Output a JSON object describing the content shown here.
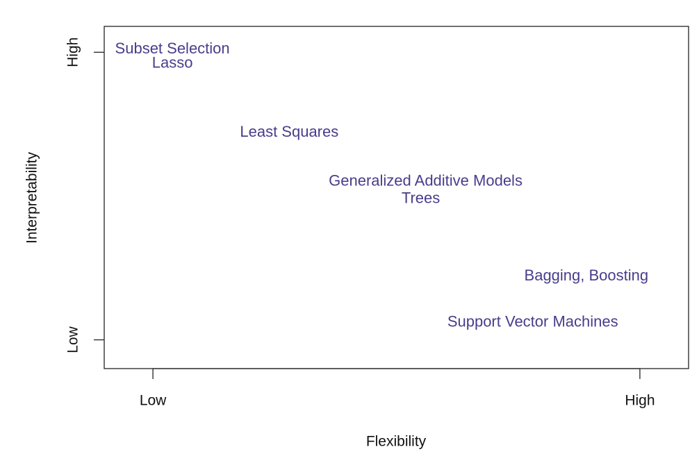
{
  "chart_data": {
    "type": "scatter",
    "xlabel": "Flexibility",
    "ylabel": "Interpretability",
    "labels": [
      "Subset Selection",
      "Lasso",
      "Least Squares",
      "Generalized Additive Models",
      "Trees",
      "Bagging, Boosting",
      "Support Vector Machines"
    ],
    "x": [
      0.04,
      0.04,
      0.28,
      0.56,
      0.55,
      0.89,
      0.78
    ],
    "values": [
      1.01,
      0.96,
      0.72,
      0.55,
      0.49,
      0.22,
      0.06
    ],
    "color": "#483d8b",
    "xlim": [
      -0.1,
      1.1
    ],
    "ylim": [
      -0.1,
      1.09
    ],
    "xticks": [
      {
        "value": 0,
        "label": "Low"
      },
      {
        "value": 1,
        "label": "High"
      }
    ],
    "yticks": [
      {
        "value": 0,
        "label": "Low"
      },
      {
        "value": 1,
        "label": "High"
      }
    ]
  }
}
